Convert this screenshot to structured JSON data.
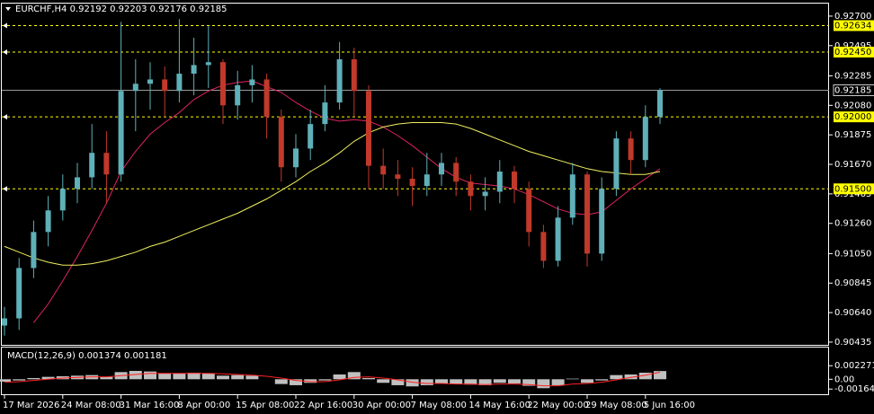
{
  "chart_data": [
    {
      "type": "candlestick",
      "title": "EURCHF,H4  0.92192 0.92203 0.92176 0.92185",
      "categories": [
        "17 Mar 2026",
        null,
        null,
        null,
        "24 Mar 08:00",
        null,
        null,
        null,
        "31 Mar 16:00",
        null,
        null,
        null,
        "8 Apr 00:00",
        null,
        null,
        null,
        "15 Apr 08:00",
        null,
        null,
        null,
        "22 Apr 16:00",
        null,
        null,
        null,
        "30 Apr 00:00",
        null,
        null,
        null,
        "7 May 08:00",
        null,
        null,
        null,
        "14 May 16:00",
        null,
        null,
        null,
        "22 May 00:00",
        null,
        null,
        null,
        "29 May 08:00",
        null,
        null,
        null,
        "5 Jun 16:00",
        null
      ],
      "open": [
        0.9055,
        0.906,
        0.9095,
        0.912,
        0.9135,
        0.915,
        0.9158,
        0.9175,
        0.916,
        0.9218,
        0.9223,
        0.9226,
        0.9218,
        0.923,
        0.9236,
        0.9238,
        0.9208,
        0.9222,
        0.9226,
        0.92,
        0.9165,
        0.9178,
        0.9195,
        0.921,
        0.924,
        0.9218,
        0.9166,
        0.916,
        0.9157,
        0.9152,
        0.916,
        0.9168,
        0.9155,
        0.9145,
        0.9148,
        0.9162,
        0.915,
        0.912,
        0.91,
        0.913,
        0.916,
        0.9105,
        0.915,
        0.9185,
        0.917,
        0.92
      ],
      "high": [
        0.9068,
        0.9102,
        0.9128,
        0.9145,
        0.916,
        0.9168,
        0.9195,
        0.919,
        0.9266,
        0.924,
        0.9238,
        0.9235,
        0.9268,
        0.9255,
        0.9263,
        0.924,
        0.9232,
        0.9236,
        0.923,
        0.9205,
        0.9188,
        0.9205,
        0.9222,
        0.9252,
        0.9248,
        0.9222,
        0.9178,
        0.917,
        0.9165,
        0.9175,
        0.9175,
        0.9172,
        0.916,
        0.9158,
        0.917,
        0.9166,
        0.9155,
        0.9125,
        0.9138,
        0.9168,
        0.9162,
        0.9158,
        0.919,
        0.919,
        0.9208,
        0.922
      ],
      "low": [
        0.9048,
        0.9052,
        0.9088,
        0.911,
        0.9128,
        0.914,
        0.915,
        0.914,
        0.9155,
        0.919,
        0.9205,
        0.92,
        0.921,
        0.9215,
        0.922,
        0.9195,
        0.9198,
        0.921,
        0.9185,
        0.9155,
        0.9158,
        0.917,
        0.919,
        0.9205,
        0.92,
        0.915,
        0.915,
        0.9145,
        0.9138,
        0.9145,
        0.9152,
        0.9145,
        0.9135,
        0.9135,
        0.914,
        0.914,
        0.911,
        0.9095,
        0.9096,
        0.9125,
        0.9096,
        0.91,
        0.9145,
        0.916,
        0.9165,
        0.9195
      ],
      "close": [
        0.906,
        0.9095,
        0.912,
        0.9135,
        0.915,
        0.9158,
        0.9175,
        0.916,
        0.9218,
        0.9223,
        0.9226,
        0.9218,
        0.923,
        0.9236,
        0.9238,
        0.9208,
        0.9222,
        0.9226,
        0.92,
        0.9165,
        0.9178,
        0.9195,
        0.921,
        0.924,
        0.9218,
        0.9166,
        0.916,
        0.9157,
        0.9152,
        0.916,
        0.9168,
        0.9155,
        0.9145,
        0.9148,
        0.9162,
        0.915,
        0.912,
        0.91,
        0.913,
        0.916,
        0.9105,
        0.915,
        0.9185,
        0.917,
        0.92,
        0.92185
      ],
      "up_color": "#5fb0b8",
      "down_color": "#c0392b",
      "lines": [
        {
          "color": "#e0245e",
          "values": [
            null,
            null,
            0.9057,
            0.907,
            0.9086,
            0.9103,
            0.9121,
            0.914,
            0.9162,
            0.9176,
            0.9188,
            0.9196,
            0.9203,
            0.9212,
            0.9218,
            0.9222,
            0.9224,
            0.9225,
            0.9221,
            0.9217,
            0.921,
            0.9204,
            0.9199,
            0.9197,
            0.9198,
            0.9197,
            0.9193,
            0.9187,
            0.918,
            0.9172,
            0.9164,
            0.9158,
            0.9154,
            0.9153,
            0.9152,
            0.915,
            0.9146,
            0.9141,
            0.9136,
            0.9133,
            0.9132,
            0.9134,
            0.9142,
            0.915,
            0.9157,
            0.9164
          ]
        },
        {
          "color": "#f0f060",
          "values": [
            0.911,
            0.9106,
            0.9102,
            0.9099,
            0.9097,
            0.9097,
            0.9098,
            0.91,
            0.9103,
            0.9106,
            0.911,
            0.9113,
            0.9117,
            0.9121,
            0.9125,
            0.9129,
            0.9133,
            0.9138,
            0.9143,
            0.9149,
            0.9155,
            0.9162,
            0.9168,
            0.9175,
            0.9183,
            0.9189,
            0.9193,
            0.9195,
            0.9196,
            0.9196,
            0.9196,
            0.9195,
            0.9192,
            0.9188,
            0.9184,
            0.918,
            0.9176,
            0.9173,
            0.917,
            0.9167,
            0.9164,
            0.9162,
            0.9161,
            0.916,
            0.916,
            0.9162
          ]
        }
      ],
      "levels": [
        {
          "value": 0.92634,
          "label": "0.92634"
        },
        {
          "value": 0.9245,
          "label": "0.92450"
        },
        {
          "value": 0.92,
          "label": "0.92000"
        },
        {
          "value": 0.915,
          "label": "0.91500"
        }
      ],
      "level_color": "#ffff00",
      "last_price": {
        "value": 0.92185,
        "label": "0.92185"
      },
      "ylim": [
        0.90416,
        0.92787
      ],
      "yticks": [
        {
          "value": 0.927,
          "label": "0.92700"
        },
        {
          "value": 0.92495,
          "label": "0.92495"
        },
        {
          "value": 0.92285,
          "label": "0.92285"
        },
        {
          "value": 0.9208,
          "label": "0.92080"
        },
        {
          "value": 0.91875,
          "label": "0.91875"
        },
        {
          "value": 0.9167,
          "label": "0.91670"
        },
        {
          "value": 0.91465,
          "label": "0.91465"
        },
        {
          "value": 0.9126,
          "label": "0.91260"
        },
        {
          "value": 0.9105,
          "label": "0.91050"
        },
        {
          "value": 0.90845,
          "label": "0.90845"
        },
        {
          "value": 0.9064,
          "label": "0.90640"
        },
        {
          "value": 0.90435,
          "label": "0.90435"
        }
      ]
    },
    {
      "type": "macd",
      "title": "MACD(12,26,9) 0.001374 0.001181",
      "histogram": [
        -0.0004,
        -0.0002,
        0.0002,
        0.0004,
        0.0005,
        0.0006,
        0.0007,
        0.0004,
        0.0012,
        0.0014,
        0.0013,
        0.001,
        0.001,
        0.0011,
        0.001,
        0.0006,
        0.0007,
        0.0006,
        0,
        -0.0008,
        -0.001,
        -0.0006,
        -0.0002,
        0.0008,
        0.0012,
        0.0002,
        -0.0006,
        -0.001,
        -0.0012,
        -0.001,
        -0.0007,
        -0.0008,
        -0.0009,
        -0.001,
        -0.0006,
        -0.0007,
        -0.0011,
        -0.0015,
        -0.001,
        0.0001,
        -0.0006,
        -0.0002,
        0.0007,
        0.0008,
        0.0011,
        0.001374
      ],
      "signal": [
        -0.0005,
        -0.0004,
        -0.0002,
        0,
        0.0002,
        0.0003,
        0.0004,
        0.0004,
        0.0006,
        0.0008,
        0.001,
        0.001,
        0.001,
        0.001,
        0.001,
        0.0009,
        0.0008,
        0.0007,
        0.0005,
        0.0002,
        -0.0002,
        -0.0004,
        -0.0004,
        -0.0001,
        0.0003,
        0.0004,
        0.0002,
        -0.0001,
        -0.0005,
        -0.0007,
        -0.0007,
        -0.0008,
        -0.0008,
        -0.0009,
        -0.0008,
        -0.0008,
        -0.0009,
        -0.0011,
        -0.0011,
        -0.0008,
        -0.0007,
        -0.0005,
        -0.0001,
        0.0003,
        0.0007,
        0.001181
      ],
      "histogram_color": "#c0c0c0",
      "signal_color": "#ff2020",
      "ylim": [
        -0.002514,
        0.005316
      ],
      "yticks": [
        0.002271,
        {
          "value": 0,
          "label": "0.00"
        },
        -0.001644
      ]
    }
  ]
}
